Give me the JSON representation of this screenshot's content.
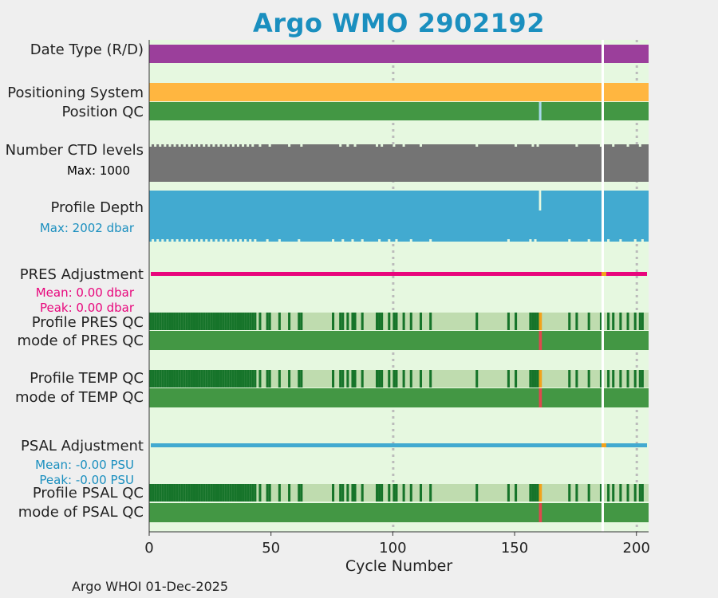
{
  "title": "Argo WMO 2902192",
  "footer": "Argo WHOI 01-Dec-2025",
  "colors": {
    "background": "#e6f8e0",
    "data_type": "#9b3f9b",
    "positioning": "#ffb640",
    "qc_good": "#439744",
    "qc_dark": "#16742a",
    "qc_light": "#bfdcaf",
    "ctd": "#747474",
    "depth": "#42aad0",
    "pres_adj": "#e8067c",
    "psal_adj": "#42aad0",
    "qc_orange": "#f2a31c",
    "qc_red": "#e0484e",
    "light_blue": "#a8d8ea",
    "pres_text": "#e8067c",
    "psal_text": "#1a8fbf"
  },
  "rows": {
    "data_type": "Date Type (R/D)",
    "positioning": "Positioning System",
    "position_qc": "Position QC",
    "ctd_levels": "Number CTD levels",
    "ctd_max": "Max: 1000",
    "profile_depth": "Profile Depth",
    "depth_max": "Max: 2002 dbar",
    "pres_adj": "PRES Adjustment",
    "pres_mean": "Mean: 0.00 dbar",
    "pres_peak": "Peak: 0.00 dbar",
    "profile_pres_qc": "Profile PRES QC",
    "mode_pres_qc": "mode of PRES QC",
    "profile_temp_qc": "Profile TEMP QC",
    "mode_temp_qc": "mode of TEMP QC",
    "psal_adj": "PSAL Adjustment",
    "psal_mean": "Mean: -0.00 PSU",
    "psal_peak": "Peak: -0.00 PSU",
    "profile_psal_qc": "Profile PSAL QC",
    "mode_psal_qc": "mode of PSAL QC"
  },
  "chart_data": {
    "type": "timeline",
    "xlabel": "Cycle Number",
    "xlim": [
      0,
      205
    ],
    "xticks": [
      0,
      50,
      100,
      150,
      200
    ],
    "xtick_labels": [
      "0",
      "50",
      "100",
      "150",
      "200"
    ],
    "gridlines_x": [
      100,
      200
    ],
    "missing_cycles": [
      186
    ],
    "position_qc_flag_cycle": 160,
    "depth_shallow_cycle": 160,
    "bad_qc_cycle": 160,
    "profile_qc_light_ranges": [
      [
        44,
        205
      ]
    ],
    "profile_qc_dark_cycles": [
      0,
      1,
      2,
      3,
      4,
      5,
      6,
      7,
      8,
      9,
      10,
      11,
      12,
      13,
      14,
      15,
      16,
      17,
      18,
      19,
      20,
      21,
      22,
      23,
      24,
      25,
      26,
      27,
      28,
      29,
      30,
      31,
      32,
      33,
      34,
      35,
      36,
      37,
      38,
      39,
      40,
      41,
      42,
      43,
      45,
      48,
      49,
      53,
      57,
      61,
      62,
      75,
      78,
      79,
      81,
      83,
      84,
      87,
      93,
      94,
      95,
      98,
      100,
      101,
      104,
      107,
      111,
      115,
      134,
      147,
      150,
      156,
      157,
      158,
      159,
      172,
      175,
      180,
      185,
      188,
      190,
      193,
      196,
      199,
      201,
      202
    ]
  }
}
